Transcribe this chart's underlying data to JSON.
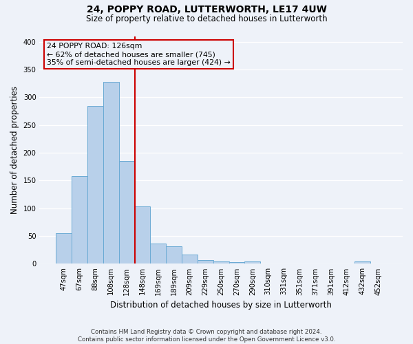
{
  "title": "24, POPPY ROAD, LUTTERWORTH, LE17 4UW",
  "subtitle": "Size of property relative to detached houses in Lutterworth",
  "xlabel": "Distribution of detached houses by size in Lutterworth",
  "ylabel": "Number of detached properties",
  "bar_labels": [
    "47sqm",
    "67sqm",
    "88sqm",
    "108sqm",
    "128sqm",
    "148sqm",
    "169sqm",
    "189sqm",
    "209sqm",
    "229sqm",
    "250sqm",
    "270sqm",
    "290sqm",
    "310sqm",
    "331sqm",
    "351sqm",
    "371sqm",
    "391sqm",
    "412sqm",
    "432sqm",
    "452sqm"
  ],
  "bar_values": [
    55,
    158,
    284,
    328,
    185,
    103,
    37,
    32,
    17,
    7,
    4,
    3,
    4,
    0,
    0,
    0,
    0,
    0,
    0,
    4,
    0
  ],
  "bar_color": "#b8d0ea",
  "bar_edgecolor": "#6aaad4",
  "marker_label": "24 POPPY ROAD: 126sqm",
  "annotation_line1": "← 62% of detached houses are smaller (745)",
  "annotation_line2": "35% of semi-detached houses are larger (424) →",
  "vline_color": "#cc0000",
  "annotation_box_edgecolor": "#cc0000",
  "vline_x_index": 3.5,
  "ylim": [
    0,
    410
  ],
  "yticks": [
    0,
    50,
    100,
    150,
    200,
    250,
    300,
    350,
    400
  ],
  "background_color": "#eef2f9",
  "grid_color": "#ffffff",
  "footer_line1": "Contains HM Land Registry data © Crown copyright and database right 2024.",
  "footer_line2": "Contains public sector information licensed under the Open Government Licence v3.0."
}
